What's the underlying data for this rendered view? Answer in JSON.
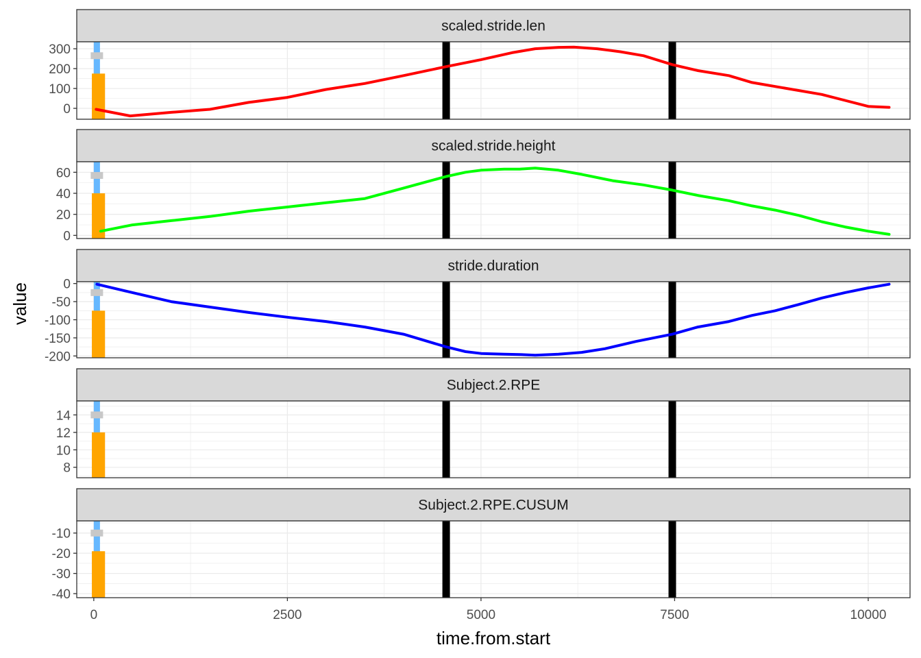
{
  "chart_data": {
    "type": "line",
    "xlabel": "time.from.start",
    "ylabel": "value",
    "xlim": [
      -220,
      10540
    ],
    "x_ticks": [
      0,
      2500,
      5000,
      7500,
      10000
    ],
    "vlines_black": [
      4550,
      7470
    ],
    "marker_x": 40,
    "grid": true,
    "colors": {
      "blue_marker": "#66b8ff",
      "gray_marker": "#c8c8c8",
      "orange_bar": "#ffa500",
      "vline": "#000000",
      "strip_fill": "#d9d9d9"
    },
    "panels": [
      {
        "name": "scaled.stride.len",
        "color": "#ff0000",
        "ylim": [
          -55,
          335
        ],
        "y_ticks": [
          0,
          100,
          200,
          300
        ],
        "gray_marker_y": 265,
        "orange_bar_top": 175,
        "line": {
          "x": [
            30,
            470,
            1000,
            1500,
            2000,
            2500,
            3000,
            3500,
            4000,
            4550,
            5000,
            5400,
            5700,
            6000,
            6200,
            6500,
            6800,
            7100,
            7470,
            7800,
            8200,
            8500,
            8800,
            9100,
            9400,
            9700,
            10000,
            10270
          ],
          "y": [
            -5,
            -38,
            -20,
            -5,
            30,
            55,
            95,
            125,
            165,
            210,
            245,
            280,
            300,
            307,
            308,
            300,
            285,
            265,
            220,
            190,
            165,
            130,
            110,
            90,
            70,
            40,
            10,
            5
          ]
        }
      },
      {
        "name": "scaled.stride.height",
        "color": "#00ff00",
        "ylim": [
          -3,
          70
        ],
        "y_ticks": [
          0,
          20,
          40,
          60
        ],
        "gray_marker_y": 57,
        "orange_bar_top": 40,
        "line": {
          "x": [
            90,
            500,
            1000,
            1500,
            2000,
            2500,
            3000,
            3500,
            4000,
            4550,
            4800,
            5000,
            5300,
            5500,
            5700,
            6000,
            6300,
            6700,
            7100,
            7470,
            7800,
            8200,
            8500,
            8800,
            9100,
            9400,
            9700,
            10000,
            10270
          ],
          "y": [
            4,
            10,
            14,
            18,
            23,
            27,
            31,
            35,
            45,
            56,
            60,
            62,
            63,
            63,
            64,
            62,
            58,
            52,
            48,
            43,
            38,
            33,
            28,
            24,
            19,
            13,
            8,
            4,
            1
          ]
        }
      },
      {
        "name": "stride.duration",
        "color": "#0000ff",
        "ylim": [
          -205,
          5
        ],
        "y_ticks": [
          0,
          -50,
          -100,
          -150,
          -200
        ],
        "gray_marker_y": -25,
        "orange_bar_top": -75,
        "line": {
          "x": [
            40,
            500,
            1000,
            1500,
            2000,
            2500,
            3000,
            3500,
            4000,
            4550,
            4800,
            5000,
            5300,
            5500,
            5700,
            6000,
            6300,
            6600,
            7000,
            7470,
            7800,
            8200,
            8500,
            8800,
            9100,
            9400,
            9700,
            10000,
            10270
          ],
          "y": [
            -2,
            -25,
            -50,
            -65,
            -80,
            -93,
            -105,
            -120,
            -140,
            -175,
            -188,
            -193,
            -195,
            -196,
            -198,
            -195,
            -190,
            -180,
            -160,
            -140,
            -120,
            -105,
            -88,
            -75,
            -58,
            -40,
            -25,
            -12,
            -2
          ]
        }
      },
      {
        "name": "Subject.2.RPE",
        "color": "#ff0000",
        "ylim": [
          6.8,
          15.6
        ],
        "y_ticks": [
          8,
          10,
          12,
          14
        ],
        "gray_marker_y": 14,
        "orange_bar_top": 12,
        "line": {
          "x": [],
          "y": []
        }
      },
      {
        "name": "Subject.2.RPE.CUSUM",
        "color": "#000000",
        "ylim": [
          -42,
          -4
        ],
        "y_ticks": [
          -10,
          -20,
          -30,
          -40
        ],
        "gray_marker_y": -10,
        "orange_bar_top": -19,
        "line": {
          "x": [],
          "y": []
        }
      }
    ]
  }
}
